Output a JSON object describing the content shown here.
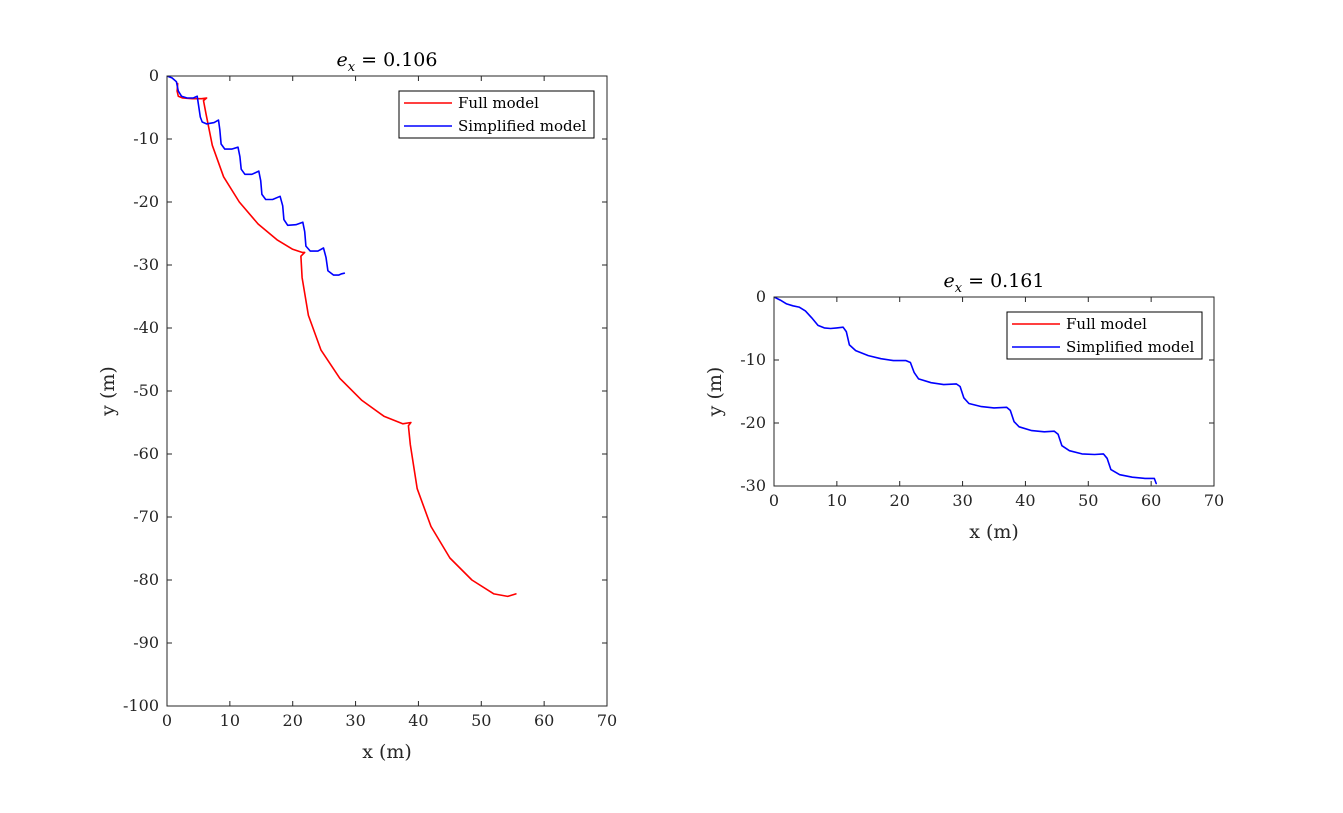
{
  "colors": {
    "full": "#ff0000",
    "simplified": "#0000ff",
    "axis": "#262626"
  },
  "chart_data": [
    {
      "type": "line",
      "title": "e_x = 0.106",
      "title_parts": {
        "var": "e",
        "sub": "x",
        "rest": " = 0.106"
      },
      "xlabel": "x (m)",
      "ylabel": "y (m)",
      "xlim": [
        0,
        70
      ],
      "ylim": [
        -100,
        0
      ],
      "xticks": [
        0,
        10,
        20,
        30,
        40,
        50,
        60,
        70
      ],
      "yticks": [
        0,
        -10,
        -20,
        -30,
        -40,
        -50,
        -60,
        -70,
        -80,
        -90,
        -100
      ],
      "legend_position": "top-right",
      "grid": false,
      "series": [
        {
          "name": "Full model",
          "color": "#ff0000",
          "x": [
            1.7,
            1.6,
            1.8,
            2.5,
            4.0,
            5.5,
            6.3,
            5.8,
            6.2,
            7.2,
            9.0,
            11.5,
            14.5,
            17.5,
            20.0,
            21.5,
            21.9,
            21.3,
            21.5,
            22.5,
            24.5,
            27.5,
            31.0,
            34.5,
            37.5,
            38.8,
            38.4,
            38.7,
            39.8,
            42.0,
            45.0,
            48.5,
            52.0,
            54.2,
            55.5
          ],
          "y": [
            -1.2,
            -2.4,
            -3.2,
            -3.5,
            -3.6,
            -3.6,
            -3.5,
            -3.9,
            -6.0,
            -11.0,
            -16.0,
            -20.0,
            -23.5,
            -26.0,
            -27.5,
            -28.0,
            -28.0,
            -28.6,
            -32.0,
            -38.0,
            -43.5,
            -48.0,
            -51.5,
            -54.0,
            -55.2,
            -55.0,
            -55.5,
            -58.5,
            -65.5,
            -71.5,
            -76.5,
            -80.0,
            -82.2,
            -82.6,
            -82.2
          ]
        },
        {
          "name": "Simplified model",
          "color": "#0000ff",
          "x": [
            0.0,
            0.8,
            1.5,
            1.8,
            2.3,
            3.2,
            4.2,
            4.8,
            5.0,
            5.3,
            5.6,
            6.3,
            7.5,
            8.2,
            8.4,
            8.6,
            9.2,
            10.3,
            11.3,
            11.6,
            11.8,
            12.4,
            13.5,
            14.6,
            14.9,
            15.1,
            15.7,
            16.8,
            18.0,
            18.4,
            18.6,
            19.2,
            20.5,
            21.6,
            21.9,
            22.1,
            22.8,
            24.0,
            24.9,
            25.3,
            25.6,
            26.5,
            27.3,
            27.8,
            28.2
          ],
          "y": [
            0.0,
            -0.3,
            -0.9,
            -2.4,
            -3.2,
            -3.5,
            -3.5,
            -3.2,
            -4.5,
            -6.5,
            -7.3,
            -7.6,
            -7.4,
            -7.0,
            -8.5,
            -10.8,
            -11.6,
            -11.6,
            -11.3,
            -12.8,
            -14.8,
            -15.6,
            -15.6,
            -15.1,
            -16.6,
            -18.8,
            -19.6,
            -19.6,
            -19.1,
            -20.6,
            -22.8,
            -23.7,
            -23.6,
            -23.2,
            -24.7,
            -27.0,
            -27.8,
            -27.8,
            -27.3,
            -28.8,
            -30.9,
            -31.6,
            -31.6,
            -31.4,
            -31.3
          ]
        }
      ]
    },
    {
      "type": "line",
      "title": "e_x = 0.161",
      "title_parts": {
        "var": "e",
        "sub": "x",
        "rest": " = 0.161"
      },
      "xlabel": "x (m)",
      "ylabel": "y (m)",
      "xlim": [
        0,
        70
      ],
      "ylim": [
        -30,
        0
      ],
      "xticks": [
        0,
        10,
        20,
        30,
        40,
        50,
        60,
        70
      ],
      "yticks": [
        0,
        -10,
        -20,
        -30
      ],
      "legend_position": "top-right",
      "grid": false,
      "series": [
        {
          "name": "Full model",
          "color": "#ff0000",
          "x": [],
          "y": []
        },
        {
          "name": "Simplified model",
          "color": "#0000ff",
          "x": [
            0.0,
            1.0,
            2.0,
            3.0,
            4.0,
            5.0,
            6.0,
            7.0,
            8.0,
            9.0,
            10.0,
            11.0,
            11.5,
            12.0,
            13.0,
            15.0,
            17.0,
            19.0,
            21.0,
            21.7,
            22.3,
            23.0,
            25.0,
            27.0,
            29.0,
            29.6,
            30.2,
            31.0,
            33.0,
            35.0,
            37.0,
            37.6,
            38.2,
            39.0,
            41.0,
            43.0,
            44.6,
            45.2,
            45.8,
            47.0,
            49.0,
            51.0,
            52.4,
            53.0,
            53.6,
            55.0,
            57.0,
            59.0,
            60.5,
            60.8
          ],
          "y": [
            0.0,
            -0.5,
            -1.1,
            -1.4,
            -1.6,
            -2.2,
            -3.3,
            -4.5,
            -4.9,
            -5.0,
            -4.9,
            -4.8,
            -5.5,
            -7.6,
            -8.5,
            -9.3,
            -9.8,
            -10.1,
            -10.1,
            -10.4,
            -12.0,
            -13.0,
            -13.6,
            -13.9,
            -13.8,
            -14.2,
            -16.0,
            -16.9,
            -17.4,
            -17.6,
            -17.5,
            -18.0,
            -19.8,
            -20.6,
            -21.2,
            -21.4,
            -21.3,
            -21.8,
            -23.6,
            -24.4,
            -24.9,
            -25.0,
            -24.9,
            -25.6,
            -27.4,
            -28.2,
            -28.6,
            -28.8,
            -28.8,
            -29.6
          ]
        }
      ]
    }
  ]
}
